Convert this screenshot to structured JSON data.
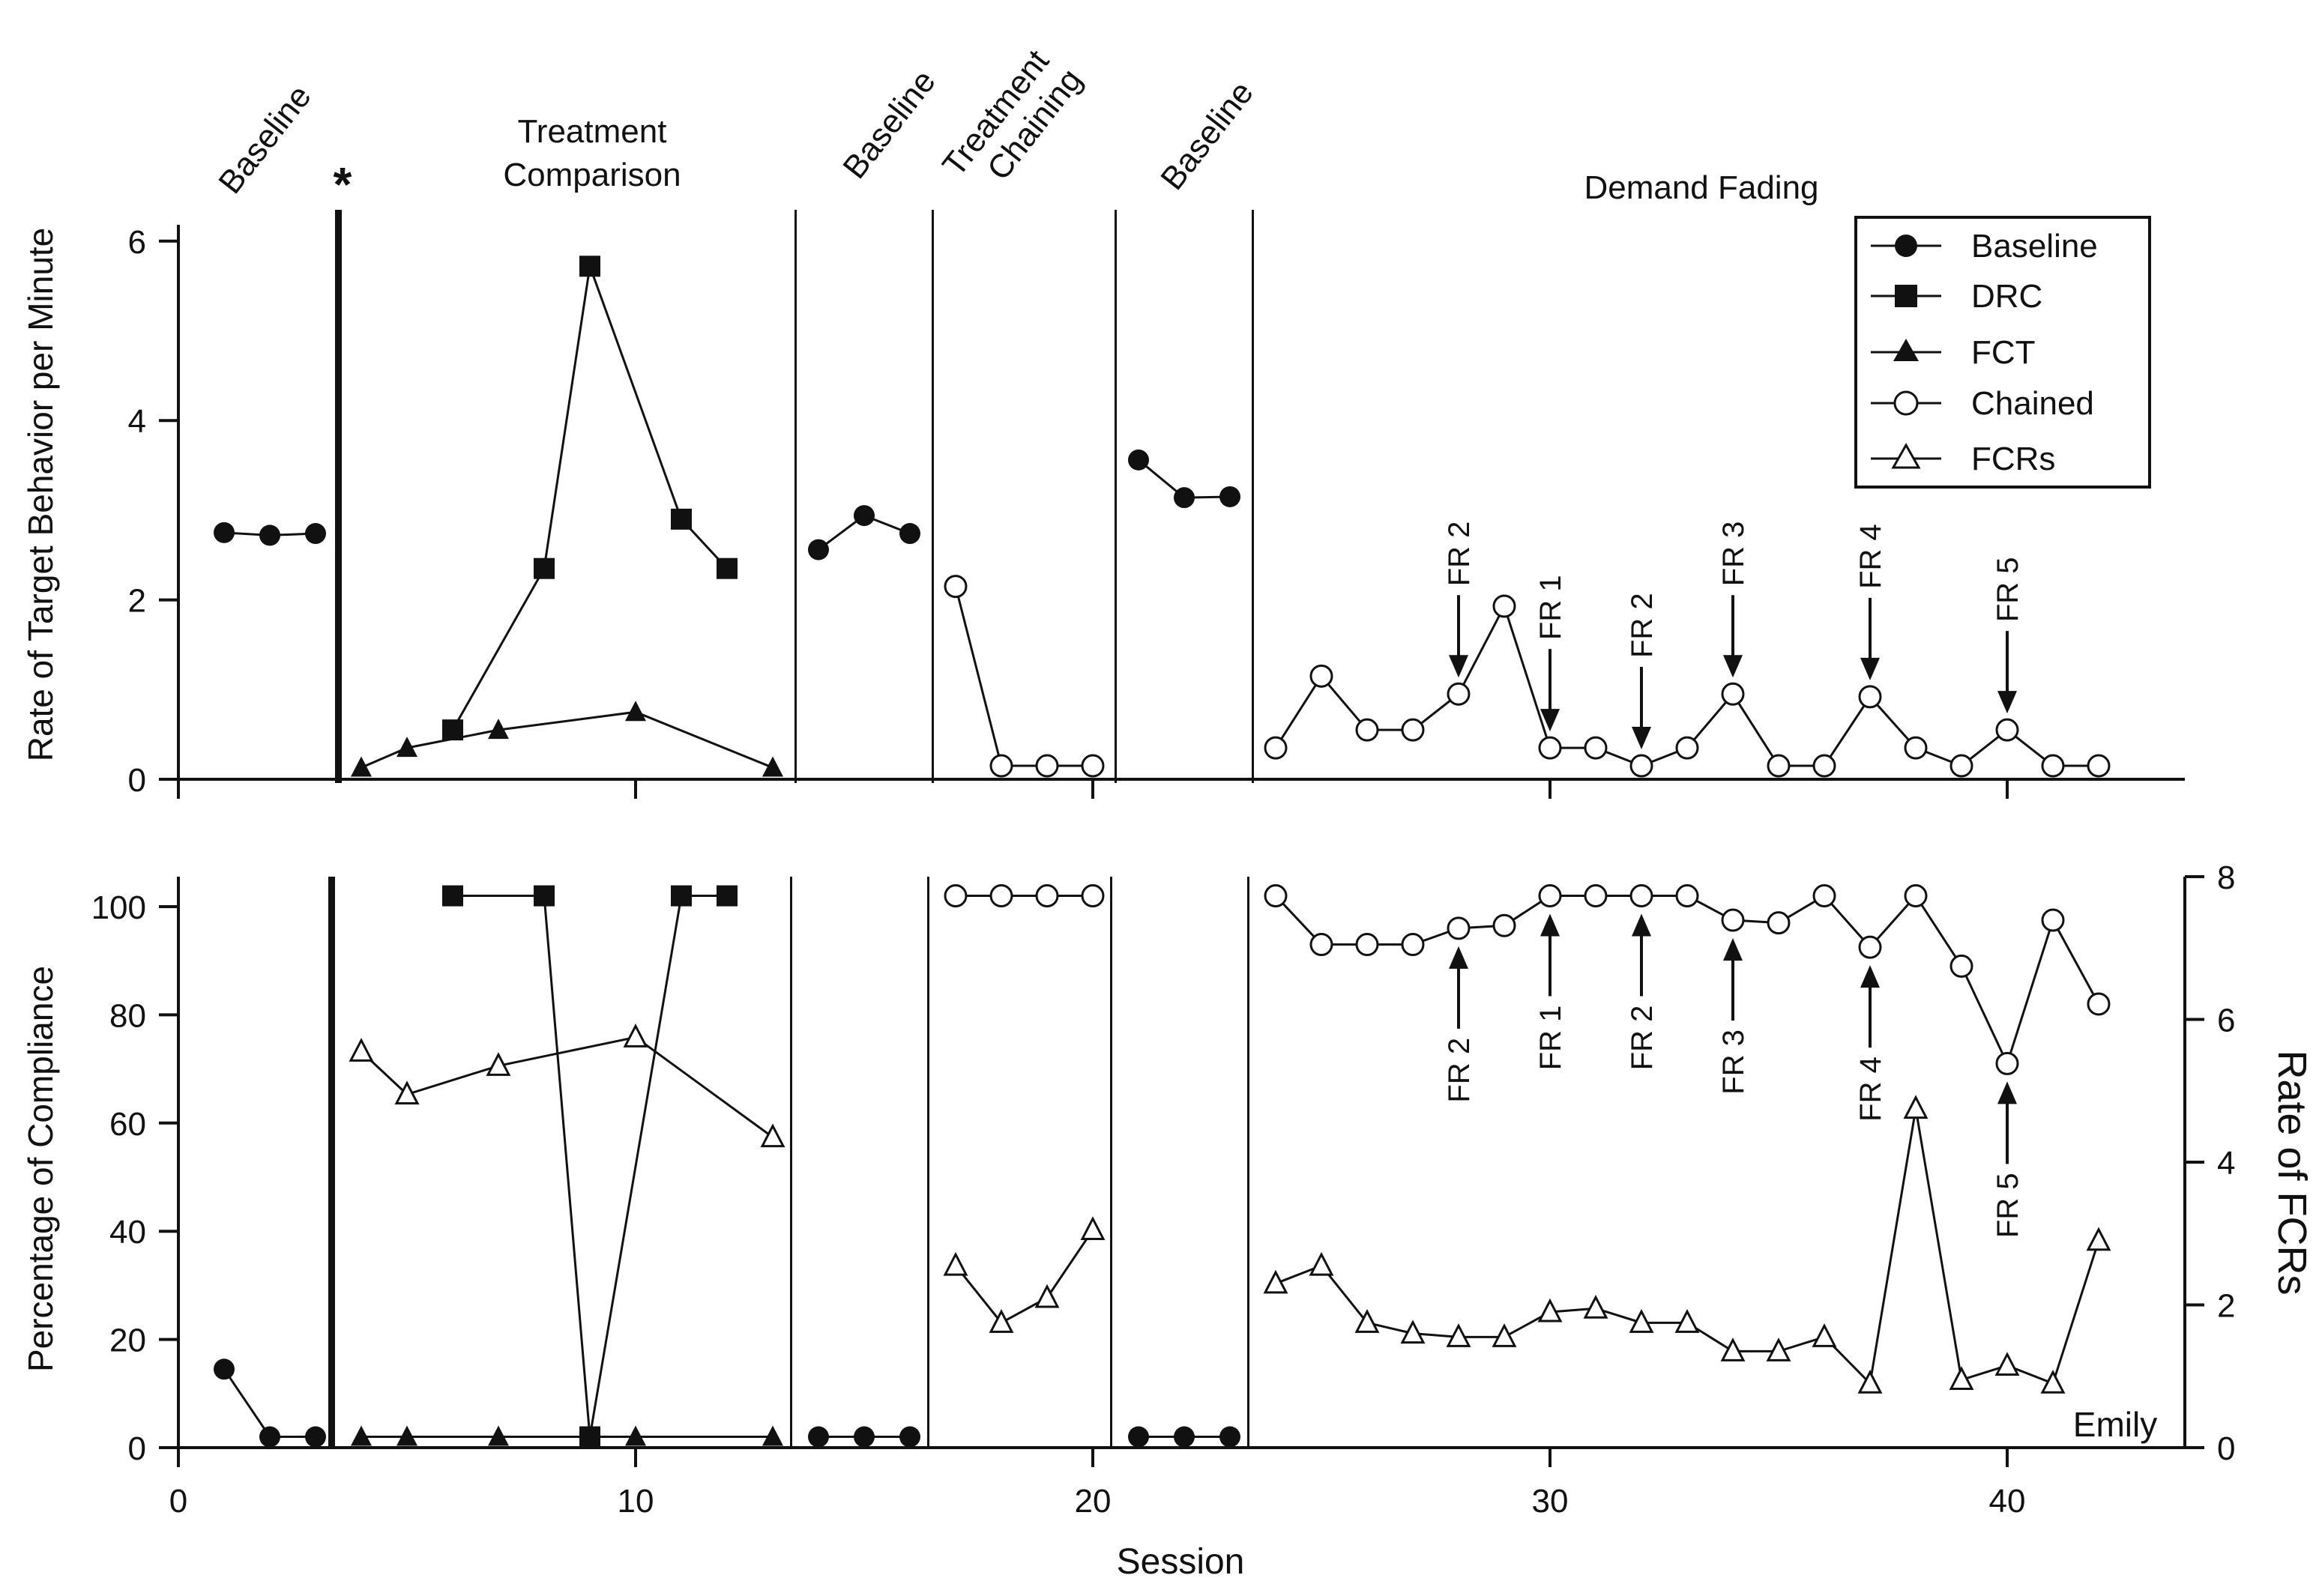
{
  "participant": "Emily",
  "x_axis": {
    "label": "Session",
    "ticks": [
      0,
      10,
      20,
      30,
      40
    ],
    "range": [
      0,
      44
    ]
  },
  "top_panel": {
    "ylabel": "Rate of Target Behavior per Minute",
    "yticks": [
      0,
      2,
      4,
      6
    ],
    "range": [
      0,
      6.4
    ]
  },
  "bottom_panel": {
    "ylabel_left": "Percentage of Compliance",
    "ylabel_right": "Rate of FCRs",
    "yticks_left": [
      0,
      20,
      40,
      60,
      80,
      100
    ],
    "yticks_right": [
      0,
      2,
      4,
      6,
      8
    ],
    "range_left": [
      0,
      106
    ],
    "range_right": [
      0,
      8
    ]
  },
  "phases": [
    "Baseline",
    "Treatment Comparison",
    "Baseline",
    "Treatment Chaining",
    "Baseline",
    "Demand Fading"
  ],
  "asterisk": "*",
  "legend": [
    "Baseline",
    "DRC",
    "FCT",
    "Chained",
    "FCRs"
  ],
  "colors": {
    "line": "#111111",
    "background": "#ffffff"
  },
  "chart_data": [
    {
      "type": "line",
      "panel": "top",
      "title": "",
      "xlabel": "Session",
      "ylabel": "Rate of Target Behavior per Minute",
      "ylim": [
        0,
        6.4
      ],
      "phase_change_after_sessions": [
        3.5,
        13.5,
        16.5,
        20.5,
        23.5
      ],
      "series": [
        {
          "name": "Baseline",
          "marker": "filled-circle",
          "segments": [
            {
              "x": [
                1,
                2,
                3
              ],
              "y": [
                2.75,
                2.72,
                2.74
              ]
            },
            {
              "x": [
                14,
                15,
                16
              ],
              "y": [
                2.56,
                2.94,
                2.74
              ]
            },
            {
              "x": [
                21,
                22,
                23
              ],
              "y": [
                3.56,
                3.14,
                3.15
              ]
            }
          ]
        },
        {
          "name": "DRC",
          "marker": "filled-square",
          "segments": [
            {
              "x": [
                6,
                8,
                9,
                11,
                12
              ],
              "y": [
                0.55,
                2.35,
                5.72,
                2.9,
                2.35
              ]
            }
          ]
        },
        {
          "name": "FCT",
          "marker": "filled-triangle",
          "segments": [
            {
              "x": [
                4,
                5,
                7,
                10,
                13
              ],
              "y": [
                0.13,
                0.35,
                0.55,
                0.75,
                0.13
              ]
            }
          ]
        },
        {
          "name": "Chained",
          "marker": "open-circle",
          "segments": [
            {
              "x": [
                17,
                18,
                19,
                20
              ],
              "y": [
                2.15,
                0.15,
                0.15,
                0.15
              ]
            },
            {
              "x": [
                24,
                25,
                26,
                27,
                28,
                29,
                30,
                31,
                32,
                33,
                34,
                35,
                36,
                37,
                38,
                39,
                40,
                41,
                42
              ],
              "y": [
                0.35,
                1.15,
                0.55,
                0.55,
                0.95,
                1.93,
                0.35,
                0.35,
                0.15,
                0.35,
                0.95,
                0.15,
                0.15,
                0.92,
                0.35,
                0.15,
                0.55,
                0.15,
                0.15
              ]
            }
          ]
        }
      ],
      "annotations": [
        {
          "text": "FR 2",
          "session": 28
        },
        {
          "text": "FR 1",
          "session": 30
        },
        {
          "text": "FR 2",
          "session": 32
        },
        {
          "text": "FR 3",
          "session": 34
        },
        {
          "text": "FR 4",
          "session": 37
        },
        {
          "text": "FR 5",
          "session": 40
        }
      ]
    },
    {
      "type": "line",
      "panel": "bottom",
      "title": "",
      "xlabel": "Session",
      "ylabel": "Percentage of Compliance",
      "y2label": "Rate of FCRs",
      "ylim": [
        0,
        106
      ],
      "y2lim": [
        0,
        8
      ],
      "phase_change_after_sessions": [
        3.5,
        13.5,
        16.5,
        20.5,
        23.5
      ],
      "series": [
        {
          "name": "Baseline",
          "axis": "left",
          "marker": "filled-circle",
          "segments": [
            {
              "x": [
                1,
                2,
                3
              ],
              "y": [
                14.5,
                2,
                2
              ]
            },
            {
              "x": [
                14,
                15,
                16
              ],
              "y": [
                2,
                2,
                2
              ]
            },
            {
              "x": [
                21,
                22,
                23
              ],
              "y": [
                2,
                2,
                2
              ]
            }
          ]
        },
        {
          "name": "DRC",
          "axis": "left",
          "marker": "filled-square",
          "segments": [
            {
              "x": [
                6,
                8,
                9,
                11,
                12
              ],
              "y": [
                102,
                102,
                2,
                102,
                102
              ]
            }
          ]
        },
        {
          "name": "FCT",
          "axis": "left",
          "marker": "filled-triangle",
          "segments": [
            {
              "x": [
                4,
                5,
                7,
                10,
                13
              ],
              "y": [
                2,
                2,
                2,
                2,
                2
              ]
            }
          ]
        },
        {
          "name": "Chained",
          "axis": "left",
          "marker": "open-circle",
          "segments": [
            {
              "x": [
                17,
                18,
                19,
                20
              ],
              "y": [
                102,
                102,
                102,
                102
              ]
            },
            {
              "x": [
                24,
                25,
                26,
                27,
                28,
                29,
                30,
                31,
                32,
                33,
                34,
                35,
                36,
                37,
                38,
                39,
                40,
                41,
                42
              ],
              "y": [
                102,
                93,
                93,
                93,
                96,
                96.5,
                102,
                102,
                102,
                102,
                97.5,
                97,
                102,
                92.5,
                102,
                89,
                71,
                97.5,
                82
              ]
            }
          ]
        },
        {
          "name": "FCRs",
          "axis": "right",
          "marker": "open-triangle",
          "segments": [
            {
              "x": [
                4,
                5,
                7,
                10,
                13
              ],
              "y": [
                5.55,
                4.95,
                5.35,
                5.75,
                4.35
              ]
            },
            {
              "x": [
                17,
                18,
                19,
                20
              ],
              "y": [
                2.55,
                1.75,
                2.1,
                3.05
              ]
            },
            {
              "x": [
                24,
                25,
                26,
                27,
                28,
                29,
                30,
                31,
                32,
                33,
                34,
                35,
                36,
                37,
                38,
                39,
                40,
                41,
                42
              ],
              "y": [
                2.3,
                2.55,
                1.75,
                1.6,
                1.55,
                1.55,
                1.9,
                1.95,
                1.75,
                1.75,
                1.35,
                1.35,
                1.55,
                0.9,
                4.75,
                0.95,
                1.15,
                0.9,
                2.9
              ]
            }
          ]
        }
      ],
      "annotations": [
        {
          "text": "FR 2",
          "session": 28
        },
        {
          "text": "FR 1",
          "session": 30
        },
        {
          "text": "FR 2",
          "session": 32
        },
        {
          "text": "FR 3",
          "session": 34
        },
        {
          "text": "FR 4",
          "session": 37
        },
        {
          "text": "FR 5",
          "session": 40
        }
      ]
    }
  ]
}
